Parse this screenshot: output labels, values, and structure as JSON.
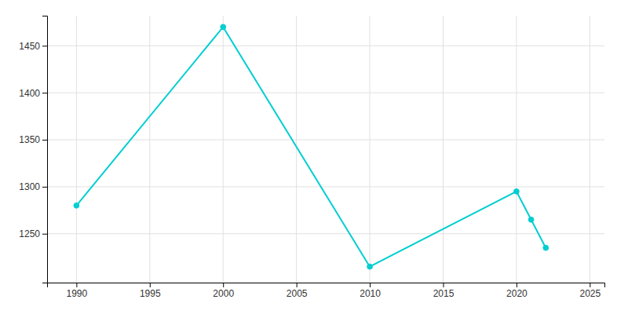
{
  "chart_data": {
    "type": "line",
    "x": [
      1990,
      2000,
      2010,
      2020,
      2021,
      2022
    ],
    "values": [
      1280,
      1470,
      1215,
      1295,
      1265,
      1235
    ],
    "color": "#00CED1",
    "marker": "circle",
    "xlim": [
      1988,
      2026
    ],
    "ylim": [
      1198,
      1482
    ],
    "xticks": [
      1990,
      1995,
      2000,
      2005,
      2010,
      2015,
      2020,
      2025
    ],
    "yticks": [
      1250,
      1300,
      1350,
      1400,
      1450
    ],
    "grid": true
  }
}
